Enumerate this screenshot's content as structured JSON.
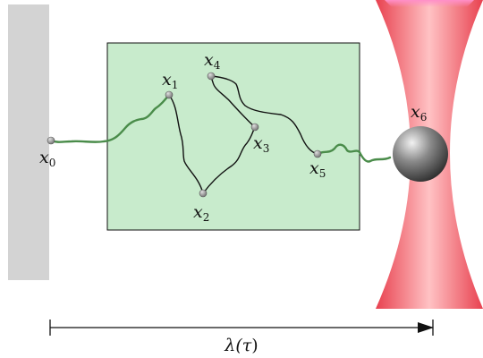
{
  "colors": {
    "wall": "#d3d3d3",
    "box_fill": "#c8ebcc",
    "box_stroke": "#111111",
    "green_path": "#4a8c4a",
    "black_path": "#111111",
    "beam_edge": "#f04e5a",
    "beam_core": "#ffc2c4",
    "bead": "#7a7a7a"
  },
  "points": [
    {
      "var": "x",
      "sub": "0"
    },
    {
      "var": "x",
      "sub": "1"
    },
    {
      "var": "x",
      "sub": "2"
    },
    {
      "var": "x",
      "sub": "3"
    },
    {
      "var": "x",
      "sub": "4"
    },
    {
      "var": "x",
      "sub": "5"
    },
    {
      "var": "x",
      "sub": "6"
    }
  ],
  "arrow_label": {
    "main": "λ(",
    "tau": "τ",
    "close": ")"
  }
}
